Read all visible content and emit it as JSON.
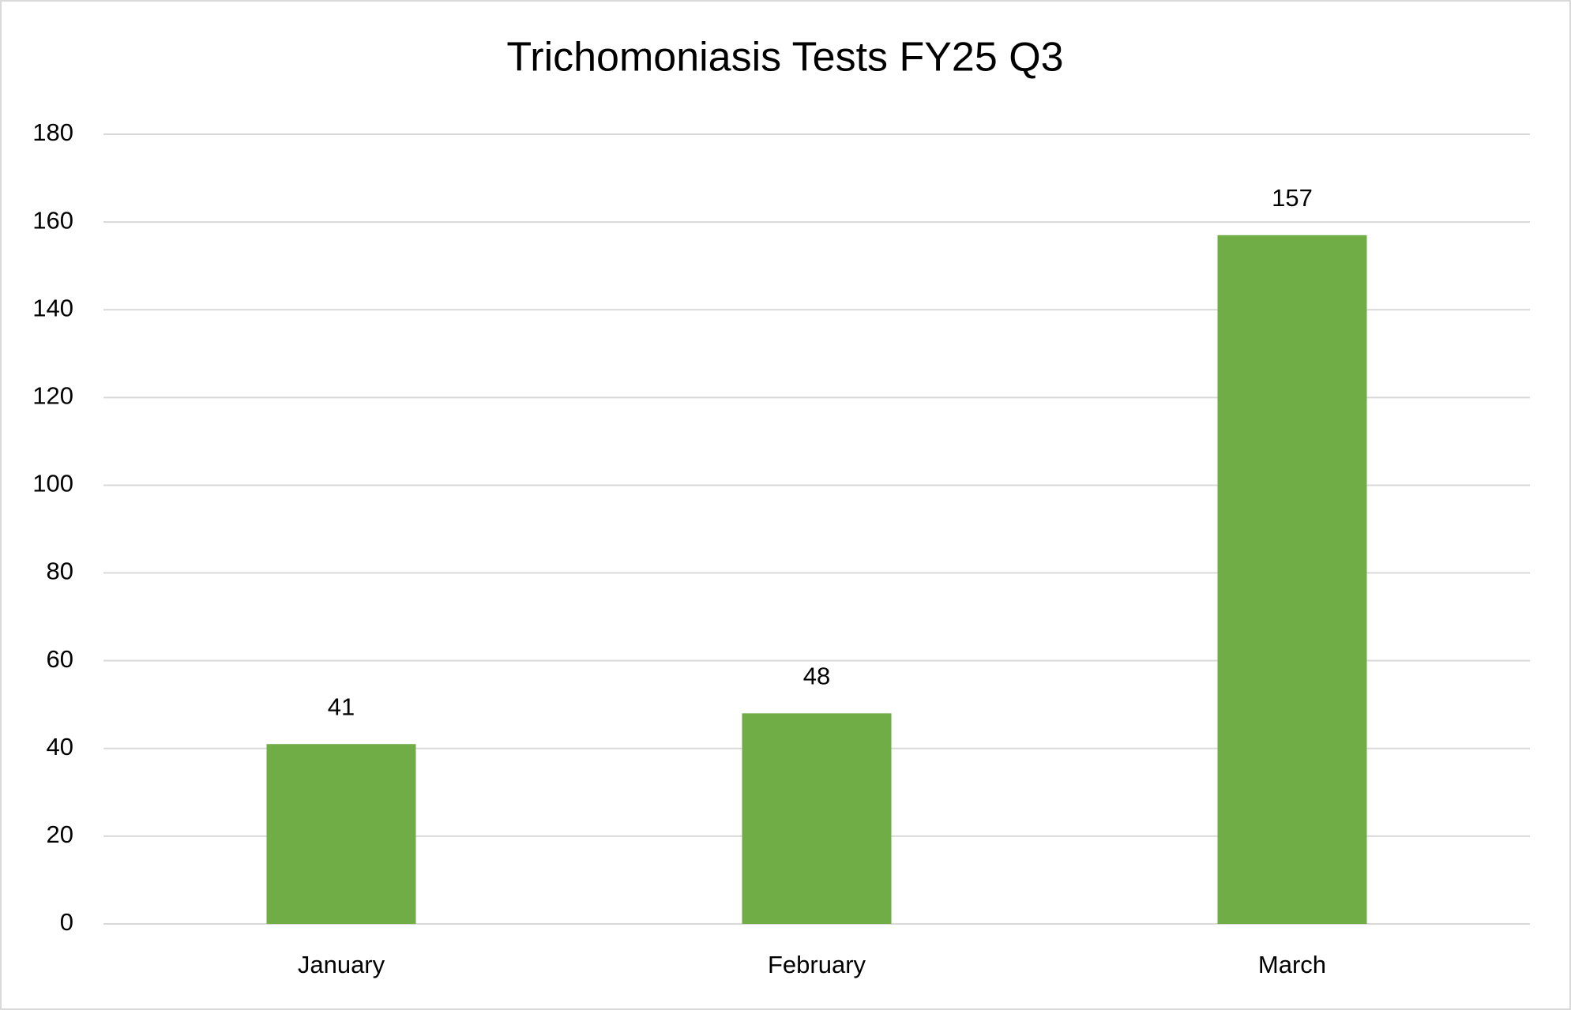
{
  "chart_data": {
    "type": "bar",
    "title": "Trichomoniasis Tests FY25 Q3",
    "categories": [
      "January",
      "February",
      "March"
    ],
    "values": [
      41,
      48,
      157
    ],
    "color": "#70ad47",
    "ylim": [
      0,
      180
    ],
    "yticks": [
      0,
      20,
      40,
      60,
      80,
      100,
      120,
      140,
      160,
      180
    ],
    "grid": true,
    "data_labels": true
  }
}
